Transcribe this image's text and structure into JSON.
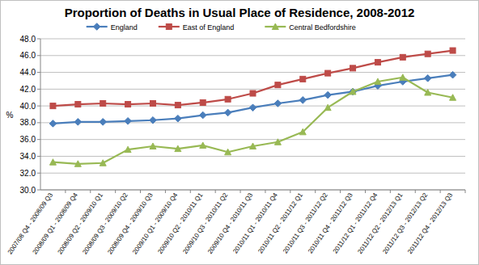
{
  "chart_data": {
    "type": "line",
    "title": "Proportion of Deaths in Usual Place of Residence, 2008-2012",
    "y_label": "%",
    "categories": [
      "2007/08 Q4 - 2008/09 Q3",
      "2008/09 Q1 - 2008/09 Q4",
      "2008/09 Q2 - 2009/10 Q1",
      "2008/09 Q3 - 2009/10 Q2",
      "2008/09 Q4 - 2009/10 Q3",
      "2009/10 Q1 - 2009/10 Q4",
      "2009/10 Q2 - 2010/11 Q1",
      "2009/10 Q3 - 2010/11 Q2",
      "2009/10 Q4 - 2010/11 Q3",
      "2010/11 Q1 - 2010/11 Q4",
      "2010/11 Q2 - 2011/12 Q1",
      "2010/11 Q3 - 2011/12 Q2",
      "2010/11 Q4 - 2011/12 Q3",
      "2011/12 Q1 - 2011/12 Q4",
      "2011/12 Q2 - 2012/13 Q1",
      "2011/12 Q3 - 2012/13 Q2",
      "2011/12 Q4 - 2012/13 Q3"
    ],
    "series": [
      {
        "name": "England",
        "color": "#4a7ebb",
        "marker": "diamond",
        "values": [
          37.9,
          38.1,
          38.1,
          38.2,
          38.3,
          38.5,
          38.9,
          39.2,
          39.8,
          40.3,
          40.7,
          41.3,
          41.7,
          42.4,
          42.9,
          43.3,
          43.7
        ]
      },
      {
        "name": "East of England",
        "color": "#be4b48",
        "marker": "square",
        "values": [
          40.0,
          40.2,
          40.3,
          40.2,
          40.3,
          40.1,
          40.4,
          40.8,
          41.5,
          42.5,
          43.2,
          43.9,
          44.5,
          45.2,
          45.8,
          46.2,
          46.6
        ]
      },
      {
        "name": "Central Bedfordshire",
        "color": "#98b954",
        "marker": "triangle",
        "values": [
          33.3,
          33.1,
          33.2,
          34.8,
          35.2,
          34.9,
          35.3,
          34.5,
          35.2,
          35.7,
          36.9,
          39.8,
          41.7,
          42.9,
          43.4,
          41.6,
          41.0
        ]
      }
    ],
    "ylim": [
      30,
      48
    ],
    "yticks": [
      {
        "value": 30,
        "label": "30.0"
      },
      {
        "value": 32,
        "label": "32.0"
      },
      {
        "value": 34,
        "label": "34.0"
      },
      {
        "value": 36,
        "label": "36.0"
      },
      {
        "value": 38,
        "label": "38.0"
      },
      {
        "value": 40,
        "label": "40.0"
      },
      {
        "value": 42,
        "label": "42.0"
      },
      {
        "value": 44,
        "label": "44.0"
      },
      {
        "value": 46,
        "label": "46.0"
      },
      {
        "value": 48,
        "label": "48.0"
      }
    ],
    "grid": true,
    "legend": "top"
  }
}
